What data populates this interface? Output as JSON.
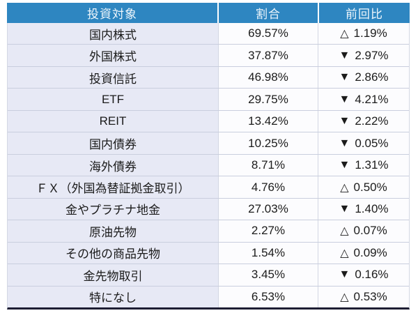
{
  "table": {
    "headers": [
      "投資対象",
      "割合",
      "前回比"
    ],
    "rows": [
      {
        "name": "国内株式",
        "ratio": "69.57%",
        "marker": "△",
        "change": "1.19%",
        "direction": "up"
      },
      {
        "name": "外国株式",
        "ratio": "37.87%",
        "marker": "▼",
        "change": "2.97%",
        "direction": "down"
      },
      {
        "name": "投資信託",
        "ratio": "46.98%",
        "marker": "▼",
        "change": "2.86%",
        "direction": "down"
      },
      {
        "name": "ETF",
        "ratio": "29.75%",
        "marker": "▼",
        "change": "4.21%",
        "direction": "down"
      },
      {
        "name": "REIT",
        "ratio": "13.42%",
        "marker": "▼",
        "change": "2.22%",
        "direction": "down"
      },
      {
        "name": "国内債券",
        "ratio": "10.25%",
        "marker": "▼",
        "change": "0.05%",
        "direction": "down"
      },
      {
        "name": "海外債券",
        "ratio": "8.71%",
        "marker": "▼",
        "change": "1.31%",
        "direction": "down"
      },
      {
        "name": "ＦＸ（外国為替証拠金取引）",
        "ratio": "4.76%",
        "marker": "△",
        "change": "0.50%",
        "direction": "up"
      },
      {
        "name": "金やプラチナ地金",
        "ratio": "27.03%",
        "marker": "▼",
        "change": "1.40%",
        "direction": "down"
      },
      {
        "name": "原油先物",
        "ratio": "2.27%",
        "marker": "△",
        "change": "0.07%",
        "direction": "up"
      },
      {
        "name": "その他の商品先物",
        "ratio": "1.54%",
        "marker": "△",
        "change": "0.09%",
        "direction": "up"
      },
      {
        "name": "金先物取引",
        "ratio": "3.45%",
        "marker": "▼",
        "change": "0.16%",
        "direction": "down"
      },
      {
        "name": "特になし",
        "ratio": "6.53%",
        "marker": "△",
        "change": "0.53%",
        "direction": "up"
      }
    ]
  },
  "colors": {
    "header_bg": "#2e86c1",
    "header_text": "#ffffff",
    "name_cell_bg": "#e7e9f5",
    "value_cell_bg": "#fcfcfe",
    "bottom_bar": "#1d1d33",
    "row_separator": "#c9cede"
  },
  "chart_data": {
    "type": "table",
    "columns": [
      "投資対象",
      "割合",
      "前回比"
    ],
    "rows": [
      [
        "国内株式",
        "69.57%",
        "△ 1.19%"
      ],
      [
        "外国株式",
        "37.87%",
        "▼ 2.97%"
      ],
      [
        "投資信託",
        "46.98%",
        "▼ 2.86%"
      ],
      [
        "ETF",
        "29.75%",
        "▼ 4.21%"
      ],
      [
        "REIT",
        "13.42%",
        "▼ 2.22%"
      ],
      [
        "国内債券",
        "10.25%",
        "▼ 0.05%"
      ],
      [
        "海外債券",
        "8.71%",
        "▼ 1.31%"
      ],
      [
        "ＦＸ（外国為替証拠金取引）",
        "4.76%",
        "△ 0.50%"
      ],
      [
        "金やプラチナ地金",
        "27.03%",
        "▼ 1.40%"
      ],
      [
        "原油先物",
        "2.27%",
        "△ 0.07%"
      ],
      [
        "その他の商品先物",
        "1.54%",
        "△ 0.09%"
      ],
      [
        "金先物取引",
        "3.45%",
        "▼ 0.16%"
      ],
      [
        "特になし",
        "6.53%",
        "△ 0.53%"
      ]
    ]
  }
}
